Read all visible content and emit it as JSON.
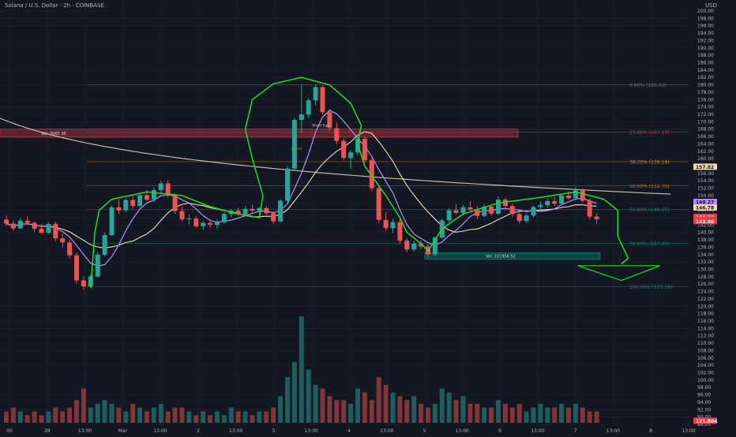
{
  "header": {
    "symbol": "Solana / U.S. Dollar · 2h · COINBASE",
    "currency": "USD"
  },
  "chart_data": {
    "type": "candlestick",
    "title": "Solana / U.S. Dollar · 2h · COINBASE",
    "ylim": [
      88,
      200
    ],
    "grid": true,
    "price_ticks": [
      200,
      198,
      196,
      194,
      192,
      190,
      188,
      186,
      184,
      182,
      180,
      178,
      176,
      174,
      172,
      170,
      168,
      166,
      164,
      162,
      160,
      158,
      156,
      154,
      152,
      150,
      148,
      146,
      144,
      142,
      140,
      138,
      136,
      134,
      132,
      130,
      128,
      126,
      124,
      122,
      120,
      118,
      116,
      114,
      112,
      110,
      108,
      106,
      104,
      102,
      100,
      98,
      96,
      94,
      92,
      90,
      88
    ],
    "price_tick_labels": [
      "200.00",
      "198.00",
      "196.00",
      "194.00",
      "192.00",
      "190.00",
      "188.00",
      "186.00",
      "184.00",
      "182.00",
      "180.00",
      "178.00",
      "176.00",
      "174.00",
      "172.00",
      "170.00",
      "168.00",
      "166.00",
      "164.00",
      "162.00",
      "160.00",
      "158.00",
      "156.00",
      "154.00",
      "152.00",
      "150.00",
      "148.00",
      "146.00",
      "144.00",
      "142.00",
      "140.00",
      "138.00",
      "136.00",
      "134.00",
      "132.00",
      "130.00",
      "128.00",
      "126.00",
      "124.00",
      "122.00",
      "120.00",
      "118.00",
      "116.00",
      "114.00",
      "112.00",
      "110.00",
      "108.00",
      "106.00",
      "104.00",
      "102.00",
      "100.00",
      "98.00",
      "96.00",
      "94.00",
      "92.00",
      "90.00",
      "88.00"
    ],
    "time_labels": [
      "00",
      "28",
      "13:00",
      "Mar",
      "13:00",
      "2",
      "13:00",
      "3",
      "13:00",
      "4",
      "13:00",
      "5",
      "13:00",
      "6",
      "13:00",
      "7",
      "13:00",
      "8",
      "13:00"
    ],
    "candles": [
      [
        143.5,
        144.6,
        141.8,
        142.4
      ],
      [
        142.4,
        143.2,
        140.5,
        141.1
      ],
      [
        141.1,
        143.8,
        140.9,
        143.2
      ],
      [
        143.2,
        144.4,
        142.0,
        142.6
      ],
      [
        142.6,
        143.0,
        140.2,
        141.0
      ],
      [
        141.0,
        142.3,
        139.6,
        139.9
      ],
      [
        139.9,
        142.8,
        139.5,
        142.3
      ],
      [
        142.3,
        142.9,
        137.6,
        138.4
      ],
      [
        138.4,
        139.8,
        136.0,
        137.3
      ],
      [
        137.3,
        138.0,
        133.0,
        133.8
      ],
      [
        133.8,
        134.5,
        126.2,
        127.0
      ],
      [
        127.0,
        128.0,
        124.5,
        125.4
      ],
      [
        125.4,
        128.6,
        125.0,
        128.1
      ],
      [
        128.1,
        134.6,
        127.8,
        134.0
      ],
      [
        134.0,
        140.0,
        133.6,
        139.3
      ],
      [
        139.3,
        147.5,
        139.0,
        146.8
      ],
      [
        146.8,
        149.0,
        145.0,
        146.0
      ],
      [
        146.0,
        149.3,
        145.5,
        148.8
      ],
      [
        148.8,
        150.2,
        146.5,
        147.2
      ],
      [
        147.2,
        150.9,
        146.8,
        150.1
      ],
      [
        150.1,
        151.6,
        148.4,
        148.9
      ],
      [
        148.9,
        152.2,
        148.3,
        151.5
      ],
      [
        151.5,
        154.0,
        150.5,
        153.3
      ],
      [
        153.3,
        154.1,
        149.4,
        150.0
      ],
      [
        150.0,
        150.5,
        145.0,
        145.8
      ],
      [
        145.8,
        147.0,
        143.0,
        143.6
      ],
      [
        143.6,
        144.9,
        142.2,
        143.8
      ],
      [
        143.8,
        144.5,
        141.2,
        141.7
      ],
      [
        141.7,
        143.2,
        140.8,
        142.6
      ],
      [
        142.6,
        143.5,
        141.3,
        142.1
      ],
      [
        142.1,
        143.5,
        140.9,
        142.8
      ],
      [
        142.8,
        145.6,
        142.4,
        145.0
      ],
      [
        145.0,
        146.4,
        144.1,
        145.9
      ],
      [
        145.9,
        146.7,
        144.4,
        144.9
      ],
      [
        144.9,
        147.1,
        144.6,
        146.4
      ],
      [
        146.4,
        147.5,
        145.4,
        145.9
      ],
      [
        145.9,
        146.8,
        145.0,
        146.6
      ],
      [
        146.6,
        147.2,
        144.8,
        145.2
      ],
      [
        145.2,
        145.8,
        142.3,
        143.0
      ],
      [
        143.0,
        149.0,
        142.6,
        148.6
      ],
      [
        148.6,
        158.0,
        148.0,
        157.3
      ],
      [
        157.3,
        171.0,
        156.9,
        170.5
      ],
      [
        170.5,
        180.2,
        167.0,
        172.0
      ],
      [
        172.0,
        176.5,
        171.0,
        175.8
      ],
      [
        175.8,
        180.0,
        174.5,
        179.4
      ],
      [
        179.4,
        179.8,
        172.0,
        172.6
      ],
      [
        172.6,
        173.5,
        167.5,
        168.3
      ],
      [
        168.3,
        169.8,
        164.0,
        164.8
      ],
      [
        164.8,
        165.5,
        159.5,
        160.2
      ],
      [
        160.2,
        162.4,
        157.2,
        161.7
      ],
      [
        161.7,
        166.0,
        160.9,
        165.4
      ],
      [
        165.4,
        166.2,
        158.9,
        159.6
      ],
      [
        159.6,
        160.5,
        151.2,
        152.0
      ],
      [
        152.0,
        152.8,
        142.5,
        143.4
      ],
      [
        143.4,
        145.5,
        140.4,
        141.2
      ],
      [
        141.2,
        143.6,
        139.8,
        142.8
      ],
      [
        142.8,
        143.6,
        136.9,
        137.8
      ],
      [
        137.8,
        138.4,
        134.6,
        135.4
      ],
      [
        135.4,
        137.8,
        134.8,
        137.0
      ],
      [
        137.0,
        137.8,
        135.4,
        136.2
      ],
      [
        136.2,
        136.8,
        133.2,
        134.1
      ],
      [
        134.1,
        139.0,
        133.6,
        138.6
      ],
      [
        138.6,
        143.8,
        138.2,
        143.3
      ],
      [
        143.3,
        146.6,
        142.6,
        146.0
      ],
      [
        146.0,
        147.7,
        144.8,
        145.3
      ],
      [
        145.3,
        147.5,
        144.6,
        146.8
      ],
      [
        146.8,
        148.5,
        145.8,
        146.2
      ],
      [
        146.2,
        147.2,
        143.6,
        144.5
      ],
      [
        144.5,
        147.6,
        144.1,
        147.0
      ],
      [
        147.0,
        147.5,
        144.5,
        145.1
      ],
      [
        145.1,
        149.8,
        144.8,
        148.9
      ],
      [
        148.9,
        149.5,
        146.5,
        147.2
      ],
      [
        147.2,
        147.8,
        144.2,
        145.0
      ],
      [
        145.0,
        146.3,
        142.4,
        143.1
      ],
      [
        143.1,
        145.2,
        142.6,
        144.6
      ],
      [
        144.6,
        147.4,
        144.1,
        146.9
      ],
      [
        146.9,
        148.3,
        146.0,
        147.4
      ],
      [
        147.4,
        149.2,
        146.7,
        148.5
      ],
      [
        148.5,
        149.8,
        147.2,
        147.8
      ],
      [
        147.8,
        150.6,
        147.3,
        150.0
      ],
      [
        150.0,
        151.2,
        148.8,
        149.3
      ],
      [
        149.3,
        152.3,
        148.8,
        151.4
      ],
      [
        151.4,
        151.9,
        148.0,
        148.6
      ],
      [
        148.6,
        149.2,
        143.5,
        144.3
      ],
      [
        144.3,
        145.2,
        142.4,
        143.6
      ]
    ],
    "volume": [
      3,
      4,
      3,
      2,
      3,
      2,
      3,
      4,
      3,
      4,
      6,
      9,
      4,
      5,
      6,
      5,
      4,
      3,
      5,
      4,
      3,
      4,
      5,
      3,
      4,
      4,
      3,
      2,
      3,
      2,
      3,
      2,
      4,
      3,
      3,
      2,
      3,
      3,
      4,
      7,
      12,
      16,
      28,
      14,
      10,
      9,
      7,
      6,
      6,
      5,
      9,
      8,
      6,
      12,
      10,
      8,
      7,
      6,
      7,
      5,
      4,
      5,
      9,
      8,
      6,
      7,
      5,
      5,
      4,
      4,
      6,
      5,
      4,
      5,
      3,
      4,
      5,
      4,
      4,
      5,
      4,
      5,
      4,
      3,
      3
    ],
    "volume_ylim": [
      0,
      28
    ],
    "fib_levels": [
      {
        "label": "0.00% (180.02)",
        "price": 180.02,
        "color": "#787b86"
      },
      {
        "label": "23.60% (167.17)",
        "price": 167.17,
        "color": "#f23645"
      },
      {
        "label": "38.20% (159.19)",
        "price": 159.19,
        "color": "#ff9800"
      },
      {
        "label": "50.00% (152.70)",
        "price": 152.7,
        "color": "#f57c00"
      },
      {
        "label": "61.80% (146.25)",
        "price": 146.25,
        "color": "#089981"
      },
      {
        "label": "78.60% (137.07)",
        "price": 137.07,
        "color": "#089981"
      },
      {
        "label": "100.00% (125.26)",
        "price": 125.26,
        "color": "#089981"
      }
    ],
    "zones": [
      {
        "label": "Vol: 3085.38",
        "top": 168.0,
        "bottom": 165.8,
        "color": "#f23645"
      },
      {
        "label": "Vol: 101956.92",
        "top": 134.5,
        "bottom": 132.8,
        "color": "#089981"
      }
    ],
    "annotations": [
      "Short Sqz",
      "Liquid"
    ],
    "right_badges": [
      {
        "label": "157.82",
        "price": 157.82,
        "color": "#f0d9a8",
        "text_color": "#131722"
      },
      {
        "label": "148.27",
        "price": 148.27,
        "color": "#b388ff",
        "text_color": "#131722"
      },
      {
        "label": "146.78",
        "price": 146.78,
        "color": "#f0d9a8",
        "text_color": "#131722"
      },
      {
        "label": "144.23",
        "price": 144.23,
        "color": "#f23645",
        "text_color": "#ffffff"
      },
      {
        "label": "143.40",
        "price": 143.4,
        "color": "#f23645",
        "text_color": "#ffffff"
      },
      {
        "label": "143.08",
        "price": 143.08,
        "color": "#f23645",
        "text_color": "#ffffff"
      },
      {
        "label": "121.884",
        "price": 89.0,
        "color": "#f23645",
        "text_color": "#ffffff"
      }
    ],
    "colors": {
      "background": "#131722",
      "up": "#26a69a",
      "down": "#ef5350",
      "grid": "#1e222d",
      "axis_text": "#b2b5be",
      "ma_fast": "#ba8ff5",
      "ma_slow": "#f5deb3",
      "ma_long": "#f0e6c8",
      "drawing": "#22dd22"
    }
  }
}
